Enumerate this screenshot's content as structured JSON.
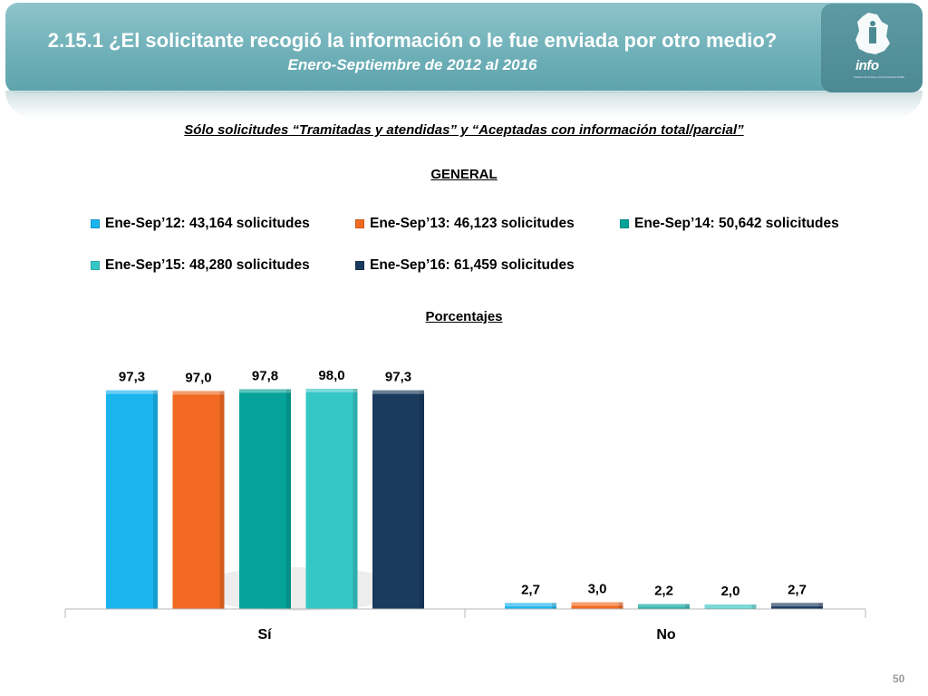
{
  "header": {
    "title": "2.15.1 ¿El solicitante recogió la información o le fue enviada por otro medio?",
    "subtitle": "Enero-Septiembre de 2012 al 2016",
    "logo_text": "info",
    "logo_small_text": "Instituto de Acceso a la Información Pública y Protección de Datos Personales del Distrito Federal"
  },
  "headings": {
    "filter": "Sólo solicitudes “Tramitadas y atendidas” y “Aceptadas con información total/parcial”",
    "group": "GENERAL",
    "unit": "Porcentajes"
  },
  "page_number": "50",
  "colors": {
    "banner": "#6fb0b8",
    "s2012": "#1ab4ee",
    "s2013": "#f26a21",
    "s2014": "#05a39a",
    "s2015": "#34c7c5",
    "s2016": "#1a3a5e"
  },
  "chart_data": {
    "type": "bar",
    "categories": [
      "Sí",
      "No"
    ],
    "series": [
      {
        "name": "Ene-Sep’12: 43,164 solicitudes",
        "values": [
          97.3,
          2.7
        ],
        "labels": [
          "97,3",
          "2,7"
        ],
        "color": "#1ab4ee"
      },
      {
        "name": "Ene-Sep’13: 46,123 solicitudes",
        "values": [
          97.0,
          3.0
        ],
        "labels": [
          "97,0",
          "3,0"
        ],
        "color": "#f26a21"
      },
      {
        "name": "Ene-Sep’14: 50,642 solicitudes",
        "values": [
          97.8,
          2.2
        ],
        "labels": [
          "97,8",
          "2,2"
        ],
        "color": "#05a39a"
      },
      {
        "name": "Ene-Sep’15: 48,280 solicitudes",
        "values": [
          98.0,
          2.0
        ],
        "labels": [
          "98,0",
          "2,0"
        ],
        "color": "#34c7c5"
      },
      {
        "name": "Ene-Sep’16: 61,459 solicitudes",
        "values": [
          97.3,
          2.7
        ],
        "labels": [
          "97,3",
          "2,7"
        ],
        "color": "#1a3a5e"
      }
    ],
    "ylim": [
      0,
      100
    ],
    "grid": false,
    "legend_position": "top"
  }
}
